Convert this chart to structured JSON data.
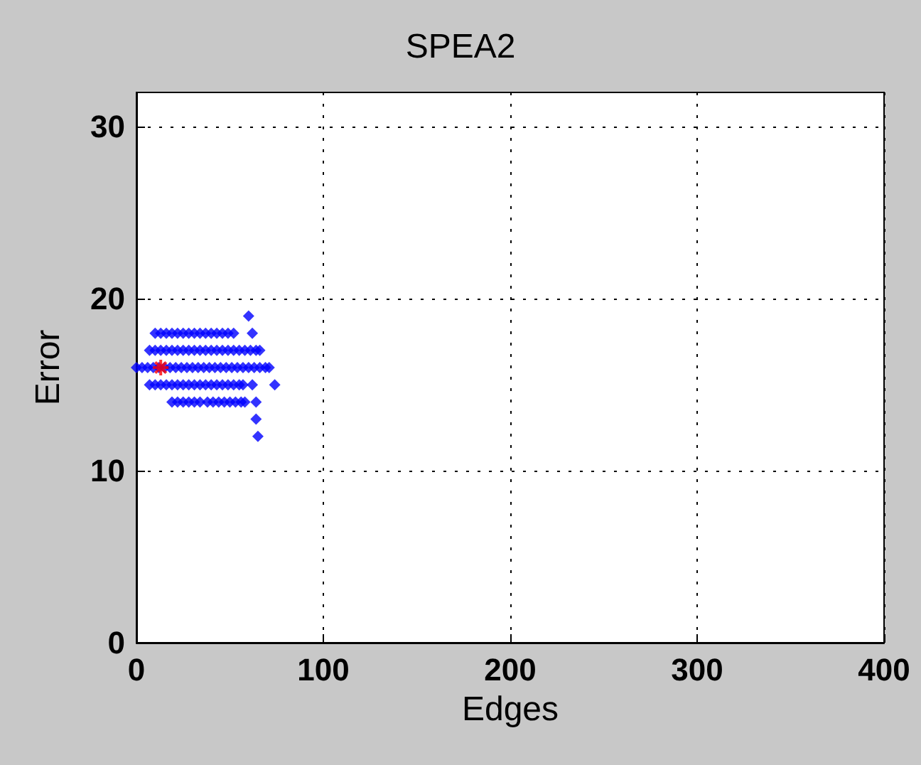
{
  "chart_data": {
    "type": "scatter",
    "title": "SPEA2",
    "xlabel": "Edges",
    "ylabel": "Error",
    "xlim": [
      0,
      400
    ],
    "xticks": [
      0,
      100,
      200,
      300,
      400
    ],
    "ylim": [
      0,
      32
    ],
    "yticks": [
      0,
      10,
      20,
      30
    ],
    "grid": true,
    "marker": "diamond",
    "series": [
      {
        "color": "#0000ff",
        "x": [
          10,
          13,
          16,
          19,
          22,
          25,
          28,
          31,
          34,
          37,
          40,
          43,
          46,
          49,
          52,
          62,
          7,
          10,
          13,
          16,
          19,
          22,
          25,
          28,
          31,
          34,
          37,
          40,
          43,
          46,
          49,
          52,
          55,
          58,
          61,
          64,
          66,
          0,
          3,
          6,
          9,
          12,
          15,
          18,
          21,
          24,
          27,
          30,
          33,
          36,
          39,
          42,
          45,
          48,
          51,
          54,
          57,
          60,
          63,
          66,
          69,
          71,
          7,
          10,
          13,
          16,
          19,
          22,
          25,
          28,
          31,
          34,
          37,
          40,
          43,
          46,
          49,
          52,
          55,
          57,
          62,
          74,
          19,
          22,
          25,
          28,
          31,
          34,
          38,
          41,
          44,
          47,
          50,
          53,
          56,
          58,
          64,
          60,
          64,
          65
        ],
        "values": [
          18,
          18,
          18,
          18,
          18,
          18,
          18,
          18,
          18,
          18,
          18,
          18,
          18,
          18,
          18,
          18,
          17,
          17,
          17,
          17,
          17,
          17,
          17,
          17,
          17,
          17,
          17,
          17,
          17,
          17,
          17,
          17,
          17,
          17,
          17,
          17,
          17,
          16,
          16,
          16,
          16,
          16,
          16,
          16,
          16,
          16,
          16,
          16,
          16,
          16,
          16,
          16,
          16,
          16,
          16,
          16,
          16,
          16,
          16,
          16,
          16,
          16,
          15,
          15,
          15,
          15,
          15,
          15,
          15,
          15,
          15,
          15,
          15,
          15,
          15,
          15,
          15,
          15,
          15,
          15,
          15,
          15,
          14,
          14,
          14,
          14,
          14,
          14,
          14,
          14,
          14,
          14,
          14,
          14,
          14,
          14,
          14,
          19,
          13,
          12
        ]
      },
      {
        "color": "#ff0000",
        "marker": "cross",
        "x": [
          13
        ],
        "values": [
          16
        ]
      }
    ]
  }
}
